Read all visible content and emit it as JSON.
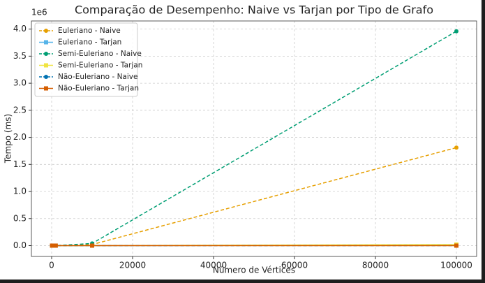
{
  "chart_data": {
    "type": "line",
    "title": "Comparação de Desempenho: Naive vs Tarjan por Tipo de Grafo",
    "x_label": "Número de Vértices",
    "y_label": "Tempo (ms)",
    "y_offset_label": "1e6",
    "x": [
      100,
      1000,
      10000,
      100000
    ],
    "series": [
      {
        "name": "Euleriano - Naive",
        "color": "#e69f00",
        "linestyle": "dashed",
        "marker": "circle",
        "values": [
          0.0,
          0.0,
          0.02,
          1.81
        ]
      },
      {
        "name": "Euleriano - Tarjan",
        "color": "#56b4e9",
        "linestyle": "solid",
        "marker": "square",
        "values": [
          0.0,
          0.0,
          0.0,
          0.01
        ]
      },
      {
        "name": "Semi-Euleriano - Naive",
        "color": "#009e73",
        "linestyle": "dashed",
        "marker": "circle",
        "values": [
          0.0,
          0.0,
          0.04,
          3.96
        ]
      },
      {
        "name": "Semi-Euleriano - Tarjan",
        "color": "#f0e442",
        "linestyle": "solid",
        "marker": "square",
        "values": [
          0.0,
          0.0,
          0.0,
          0.02
        ]
      },
      {
        "name": "Não-Euleriano - Naive",
        "color": "#0072b2",
        "linestyle": "dashed",
        "marker": "circle",
        "values": [
          0.0,
          0.0,
          0.0,
          0.0
        ]
      },
      {
        "name": "Não-Euleriano - Tarjan",
        "color": "#d55e00",
        "linestyle": "solid",
        "marker": "square",
        "values": [
          0.0,
          0.0,
          0.0,
          0.0
        ]
      }
    ],
    "xlim": [
      -5000,
      105000
    ],
    "xticks": [
      0,
      20000,
      40000,
      60000,
      80000,
      100000
    ],
    "ylim": [
      -0.2,
      4.15
    ],
    "yticks": [
      {
        "value": 0,
        "label": "0.0"
      },
      {
        "value": 0.5,
        "label": "0.5"
      },
      {
        "value": 1,
        "label": "1.0"
      },
      {
        "value": 1.5,
        "label": "1.5"
      },
      {
        "value": 2,
        "label": "2.0"
      },
      {
        "value": 2.5,
        "label": "2.5"
      },
      {
        "value": 3,
        "label": "3.0"
      },
      {
        "value": 3.5,
        "label": "3.5"
      },
      {
        "value": 4,
        "label": "4.0"
      }
    ],
    "grid": true,
    "legend": "upper-left"
  }
}
